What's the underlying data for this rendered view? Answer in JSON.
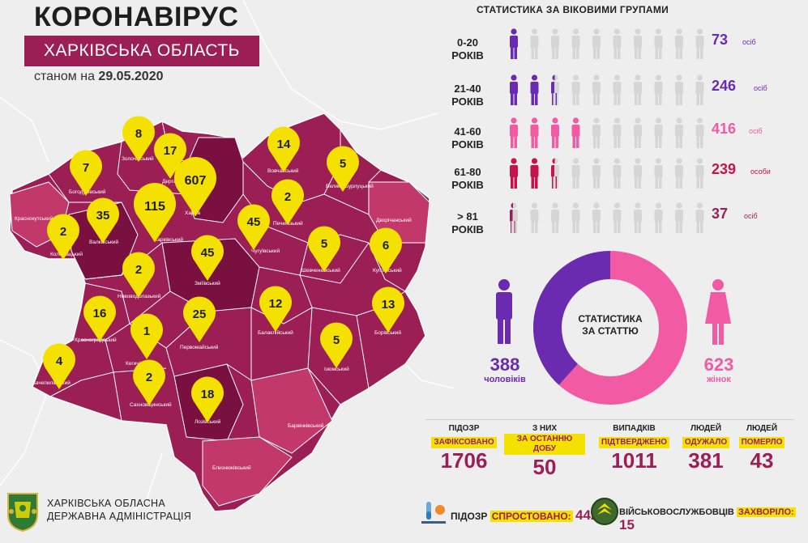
{
  "header": {
    "title": "КОРОНАВІРУС",
    "region": "ХАРКІВСЬКА ОБЛАСТЬ",
    "as_of_prefix": "станом на",
    "as_of_date": "29.05.2020"
  },
  "colors": {
    "primary": "#9b1f54",
    "dark": "#7a1040",
    "light_region": "#c2386b",
    "yellow": "#f5e100",
    "men": "#6a2bb0",
    "women": "#f25aa4",
    "age_61_80": "#c4134f",
    "age_81": "#9b1f54"
  },
  "map": {
    "pins": [
      {
        "value": "8"
      },
      {
        "value": "17"
      },
      {
        "value": "607"
      },
      {
        "value": "7"
      },
      {
        "value": "115"
      },
      {
        "value": "35"
      },
      {
        "value": "2"
      },
      {
        "value": "14"
      },
      {
        "value": "5"
      },
      {
        "value": "2"
      },
      {
        "value": "45"
      },
      {
        "value": "5"
      },
      {
        "value": "6"
      },
      {
        "value": "2"
      },
      {
        "value": "45"
      },
      {
        "value": "16"
      },
      {
        "value": "25"
      },
      {
        "value": "12"
      },
      {
        "value": "13"
      },
      {
        "value": "1"
      },
      {
        "value": "5"
      },
      {
        "value": "4"
      },
      {
        "value": "2"
      },
      {
        "value": "18"
      }
    ],
    "districts": [
      "Золочівський",
      "Дергачівський",
      "Харків",
      "Богодухівський",
      "Харківський",
      "Валківський",
      "Коломацький",
      "Краснокутський",
      "Вовчанський",
      "Велико-Бурлуцький",
      "Печенізький",
      "Чугуївський",
      "Шевченківський",
      "Дворічанський",
      "Куп'янський",
      "Нововодолазький",
      "Зміївський",
      "Красноградський",
      "Балаклійський",
      "Борівський",
      "Кегичівський",
      "Первомайський",
      "Ізюмський",
      "Зачепилівський",
      "Сахновщинський",
      "Лозівський",
      "Барвінківський",
      "Близнюківський"
    ]
  },
  "age_stats": {
    "title": "СТАТИСТИКА ЗА ВІКОВИМИ ГРУПАМИ",
    "groups": [
      {
        "line1": "0-20",
        "line2": "РОКІВ",
        "count": "73",
        "unit": "осіб",
        "filled": 1
      },
      {
        "line1": "21-40",
        "line2": "РОКІВ",
        "count": "246",
        "unit": "осіб",
        "filled": 2.4
      },
      {
        "line1": "41-60",
        "line2": "РОКІВ",
        "count": "416",
        "unit": "осіб",
        "filled": 4
      },
      {
        "line1": "61-80",
        "line2": "РОКІВ",
        "count": "239",
        "unit": "особи",
        "filled": 2.4
      },
      {
        "line1": "> 81",
        "line2": "РОКІВ",
        "count": "37",
        "unit": "осіб",
        "filled": 0.35
      }
    ]
  },
  "gender": {
    "center_line1": "СТАТИСТИКА",
    "center_line2": "ЗА СТАТТЮ",
    "men_count": "388",
    "men_label": "чоловіків",
    "women_count": "623",
    "women_label": "жінок",
    "men_share": 0.384
  },
  "stats": [
    {
      "line1": "ПІДОЗР",
      "line2": "ЗАФІКСОВАНО",
      "value": "1706"
    },
    {
      "line1": "З НИХ",
      "line2": "ЗА ОСТАННЮ ДОБУ",
      "value": "50"
    },
    {
      "line1": "ВИПАДКІВ",
      "line2": "ПІДТВЕРДЖЕНО",
      "value": "1011"
    },
    {
      "line1": "ЛЮДЕЙ",
      "line2": "ОДУЖАЛО",
      "value": "381"
    },
    {
      "line1": "ЛЮДЕЙ",
      "line2": "ПОМЕРЛО",
      "value": "43"
    }
  ],
  "footer": {
    "org_line1": "ХАРКІВСЬКА ОБЛАСНА",
    "org_line2": "ДЕРЖАВНА АДМІНІСТРАЦІЯ",
    "refuted_prefix": "ПІДОЗР",
    "refuted_label": "СПРОСТОВАНО:",
    "refuted_value": "442",
    "military_prefix": "ВІЙСЬКОВОСЛУЖБОВЦІВ",
    "military_label": "ЗАХВОРІЛО:",
    "military_value": "15"
  }
}
